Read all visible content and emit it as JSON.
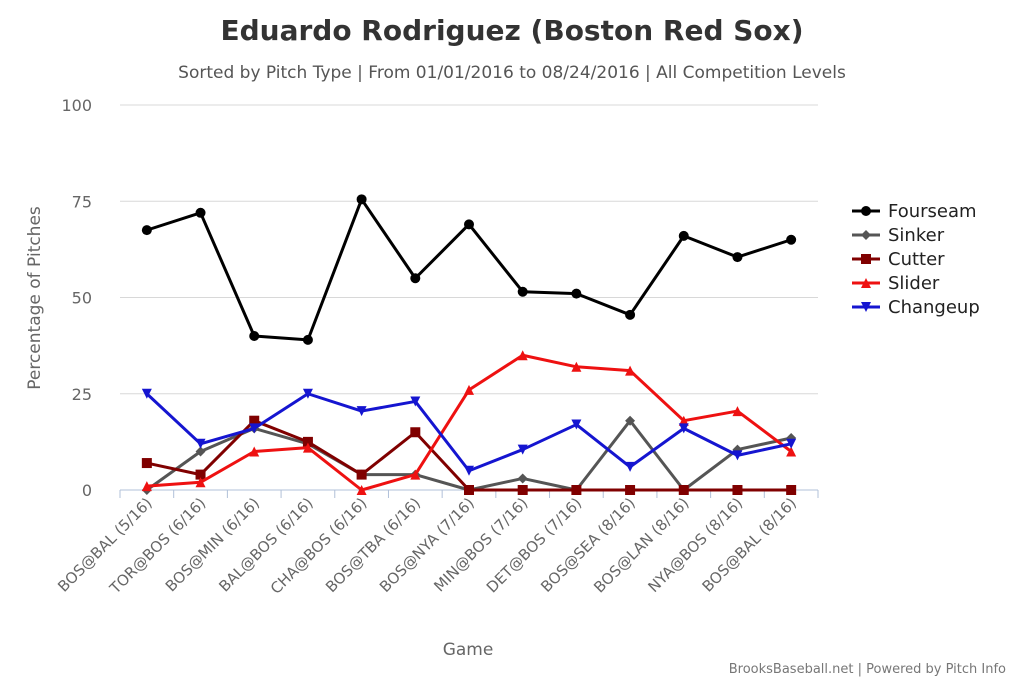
{
  "chart_data": {
    "type": "line",
    "title": "Eduardo Rodriguez (Boston Red Sox)",
    "subtitle": "Sorted by Pitch Type | From 01/01/2016 to 08/24/2016 | All Competition Levels",
    "xlabel": "Game",
    "ylabel": "Percentage of Pitches",
    "ylim": [
      0,
      100
    ],
    "yticks": [
      0,
      25,
      50,
      75,
      100
    ],
    "grid": true,
    "legend_position": "right",
    "categories": [
      "BOS@BAL (5/16)",
      "TOR@BOS (6/16)",
      "BOS@MIN (6/16)",
      "BAL@BOS (6/16)",
      "CHA@BOS (6/16)",
      "BOS@TBA (6/16)",
      "BOS@NYA (7/16)",
      "MIN@BOS (7/16)",
      "DET@BOS (7/16)",
      "BOS@SEA (8/16)",
      "BOS@LAN (8/16)",
      "NYA@BOS (8/16)",
      "BOS@BAL (8/16)"
    ],
    "series": [
      {
        "name": "Fourseam",
        "color": "#000000",
        "marker": "circle",
        "values": [
          67.5,
          72,
          40,
          39,
          75.5,
          55,
          69,
          51.5,
          51,
          45.5,
          66,
          60.5,
          65
        ]
      },
      {
        "name": "Sinker",
        "color": "#555555",
        "marker": "diamond",
        "values": [
          0,
          10,
          16,
          12,
          4,
          4,
          0,
          3,
          0,
          18,
          0,
          10.5,
          13.5
        ]
      },
      {
        "name": "Cutter",
        "color": "#800000",
        "marker": "square",
        "values": [
          7,
          4,
          18,
          12.5,
          4,
          15,
          0,
          0,
          0,
          0,
          0,
          0,
          0
        ]
      },
      {
        "name": "Slider",
        "color": "#ee1111",
        "marker": "triangle",
        "values": [
          1,
          2,
          10,
          11,
          0,
          4,
          26,
          35,
          32,
          31,
          18,
          20.5,
          10
        ]
      },
      {
        "name": "Changeup",
        "color": "#1515d0",
        "marker": "triangle-down",
        "values": [
          25,
          12,
          16,
          25,
          20.5,
          23,
          5,
          10.5,
          17,
          6,
          16,
          9,
          12
        ]
      }
    ]
  },
  "credits": "BrooksBaseball.net | Powered by Pitch Info"
}
